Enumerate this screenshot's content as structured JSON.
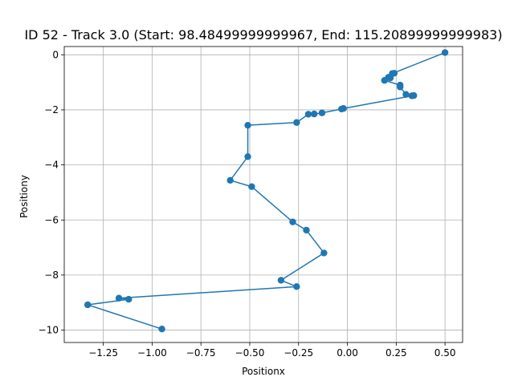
{
  "chart_data": {
    "type": "line",
    "title": "ID 52 - Track 3.0 (Start: 98.48499999999967, End: 115.20899999999983)",
    "xlabel": "Positionx",
    "ylabel": "Positiony",
    "xlim": [
      -1.45,
      0.59
    ],
    "ylim": [
      -10.45,
      0.3
    ],
    "xticks": [
      -1.25,
      -1.0,
      -0.75,
      -0.5,
      -0.25,
      0.0,
      0.25,
      0.5
    ],
    "xtick_labels": [
      "−1.25",
      "−1.00",
      "−0.75",
      "−0.50",
      "−0.25",
      "0.00",
      "0.25",
      "0.50"
    ],
    "yticks": [
      0,
      -2,
      -4,
      -6,
      -8,
      -10
    ],
    "ytick_labels": [
      "0",
      "−2",
      "−4",
      "−6",
      "−8",
      "−10"
    ],
    "grid": true,
    "markers": true,
    "color": "#1f77b4",
    "series": [
      {
        "x": [
          0.5,
          0.23,
          0.24,
          0.21,
          0.22,
          0.19,
          0.27,
          0.27,
          0.3,
          0.33,
          0.34,
          -0.02,
          -0.03,
          -0.13,
          -0.17,
          -0.2,
          -0.26,
          -0.51,
          -0.51,
          -0.6,
          -0.49,
          -0.28,
          -0.21,
          -0.12,
          -0.34,
          -0.26,
          -1.17,
          -1.12,
          -1.33,
          -0.95
        ],
        "y": [
          0.08,
          -0.68,
          -0.67,
          -0.82,
          -0.84,
          -0.93,
          -1.1,
          -1.17,
          -1.44,
          -1.49,
          -1.48,
          -1.95,
          -1.97,
          -2.11,
          -2.15,
          -2.16,
          -2.46,
          -2.56,
          -3.7,
          -4.56,
          -4.79,
          -6.07,
          -6.37,
          -7.2,
          -8.19,
          -8.42,
          -8.84,
          -8.88,
          -9.08,
          -9.96
        ]
      }
    ]
  }
}
